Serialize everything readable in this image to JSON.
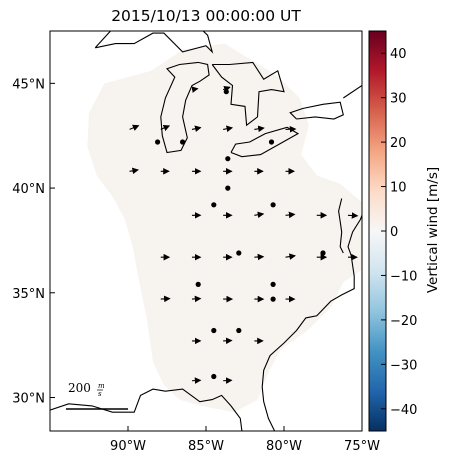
{
  "title": "2015/10/13 00:00:00 UT",
  "map": {
    "lon_range": [
      -95,
      -75
    ],
    "lat_range": [
      28.4,
      47.5
    ],
    "lon_ticks": [
      {
        "value": -90,
        "label": "90°W"
      },
      {
        "value": -85,
        "label": "85°W"
      },
      {
        "value": -80,
        "label": "80°W"
      },
      {
        "value": -75,
        "label": "75°W"
      }
    ],
    "lat_ticks": [
      {
        "value": 30,
        "label": "30°N"
      },
      {
        "value": 35,
        "label": "35°N"
      },
      {
        "value": 40,
        "label": "40°N"
      },
      {
        "value": 45,
        "label": "45°N"
      }
    ],
    "field_color": "#f7f3ef",
    "coastline_color": "#000000"
  },
  "scale": {
    "label": "200",
    "unit_num": "m",
    "unit_den": "s",
    "speed_ms": 200
  },
  "colorbar": {
    "label": "Vertical wind [m/s]",
    "min": -45,
    "max": 45,
    "ticks": [
      "40",
      "30",
      "20",
      "10",
      "0",
      "−10",
      "−20",
      "−30",
      "−40"
    ],
    "tick_values": [
      40,
      30,
      20,
      10,
      0,
      -10,
      -20,
      -30,
      -40
    ],
    "colors": [
      "#053061",
      "#2166ac",
      "#4393c3",
      "#92c5de",
      "#d1e5f0",
      "#f7f7f7",
      "#fddbc7",
      "#f4a582",
      "#d6604d",
      "#b2182b",
      "#67001f"
    ]
  },
  "stations": [
    {
      "lon": -88.1,
      "lat": 42.2
    },
    {
      "lon": -86.5,
      "lat": 42.2
    },
    {
      "lon": -83.7,
      "lat": 44.6
    },
    {
      "lon": -80.8,
      "lat": 42.2
    },
    {
      "lon": -83.6,
      "lat": 41.4
    },
    {
      "lon": -83.6,
      "lat": 40.0
    },
    {
      "lon": -84.5,
      "lat": 39.2
    },
    {
      "lon": -80.7,
      "lat": 39.2
    },
    {
      "lon": -82.9,
      "lat": 36.9
    },
    {
      "lon": -77.5,
      "lat": 36.9
    },
    {
      "lon": -85.5,
      "lat": 35.4
    },
    {
      "lon": -80.7,
      "lat": 35.4
    },
    {
      "lon": -80.7,
      "lat": 34.7
    },
    {
      "lon": -84.5,
      "lat": 33.2
    },
    {
      "lon": -82.9,
      "lat": 33.2
    },
    {
      "lon": -84.5,
      "lat": 31.0
    }
  ],
  "wind_vectors": [
    {
      "lon": -89.9,
      "lat": 42.8,
      "u": 95,
      "v": 40
    },
    {
      "lon": -87.9,
      "lat": 42.8,
      "u": 90,
      "v": 38
    },
    {
      "lon": -85.9,
      "lat": 42.8,
      "u": 92,
      "v": 20
    },
    {
      "lon": -83.9,
      "lat": 42.8,
      "u": 95,
      "v": 18
    },
    {
      "lon": -81.9,
      "lat": 42.8,
      "u": 100,
      "v": 15
    },
    {
      "lon": -79.9,
      "lat": 42.8,
      "u": 105,
      "v": 5
    },
    {
      "lon": -83.9,
      "lat": 44.7,
      "u": 70,
      "v": 25
    },
    {
      "lon": -85.9,
      "lat": 44.7,
      "u": 60,
      "v": 10
    },
    {
      "lon": -89.9,
      "lat": 40.8,
      "u": 90,
      "v": 15
    },
    {
      "lon": -87.9,
      "lat": 40.8,
      "u": 85,
      "v": 0
    },
    {
      "lon": -85.9,
      "lat": 40.8,
      "u": 90,
      "v": 0
    },
    {
      "lon": -83.9,
      "lat": 40.8,
      "u": 90,
      "v": 0
    },
    {
      "lon": -81.9,
      "lat": 40.8,
      "u": 90,
      "v": 0
    },
    {
      "lon": -79.9,
      "lat": 40.8,
      "u": 90,
      "v": 0
    },
    {
      "lon": -85.9,
      "lat": 38.7,
      "u": 90,
      "v": 0
    },
    {
      "lon": -83.9,
      "lat": 38.7,
      "u": 90,
      "v": 0
    },
    {
      "lon": -81.9,
      "lat": 38.7,
      "u": 95,
      "v": 15
    },
    {
      "lon": -79.9,
      "lat": 38.7,
      "u": 95,
      "v": 10
    },
    {
      "lon": -77.9,
      "lat": 38.7,
      "u": 100,
      "v": 0
    },
    {
      "lon": -75.9,
      "lat": 38.7,
      "u": 100,
      "v": -5
    },
    {
      "lon": -87.9,
      "lat": 36.7,
      "u": 90,
      "v": 0
    },
    {
      "lon": -85.9,
      "lat": 36.7,
      "u": 90,
      "v": 0
    },
    {
      "lon": -83.9,
      "lat": 36.7,
      "u": 90,
      "v": 0
    },
    {
      "lon": -81.9,
      "lat": 36.7,
      "u": 95,
      "v": 5
    },
    {
      "lon": -79.9,
      "lat": 36.7,
      "u": 100,
      "v": 15
    },
    {
      "lon": -77.9,
      "lat": 36.7,
      "u": 100,
      "v": 0
    },
    {
      "lon": -75.9,
      "lat": 36.7,
      "u": 95,
      "v": 0
    },
    {
      "lon": -87.9,
      "lat": 34.7,
      "u": 95,
      "v": 5
    },
    {
      "lon": -85.9,
      "lat": 34.7,
      "u": 90,
      "v": 5
    },
    {
      "lon": -83.9,
      "lat": 34.7,
      "u": 95,
      "v": 0
    },
    {
      "lon": -81.9,
      "lat": 34.7,
      "u": 95,
      "v": 0
    },
    {
      "lon": -79.9,
      "lat": 34.7,
      "u": 95,
      "v": 0
    },
    {
      "lon": -85.9,
      "lat": 32.7,
      "u": 90,
      "v": 0
    },
    {
      "lon": -83.9,
      "lat": 32.7,
      "u": 90,
      "v": 5
    },
    {
      "lon": -81.9,
      "lat": 32.7,
      "u": 90,
      "v": 0
    },
    {
      "lon": -85.9,
      "lat": 30.8,
      "u": 90,
      "v": 5
    },
    {
      "lon": -83.9,
      "lat": 30.8,
      "u": 90,
      "v": 5
    }
  ]
}
